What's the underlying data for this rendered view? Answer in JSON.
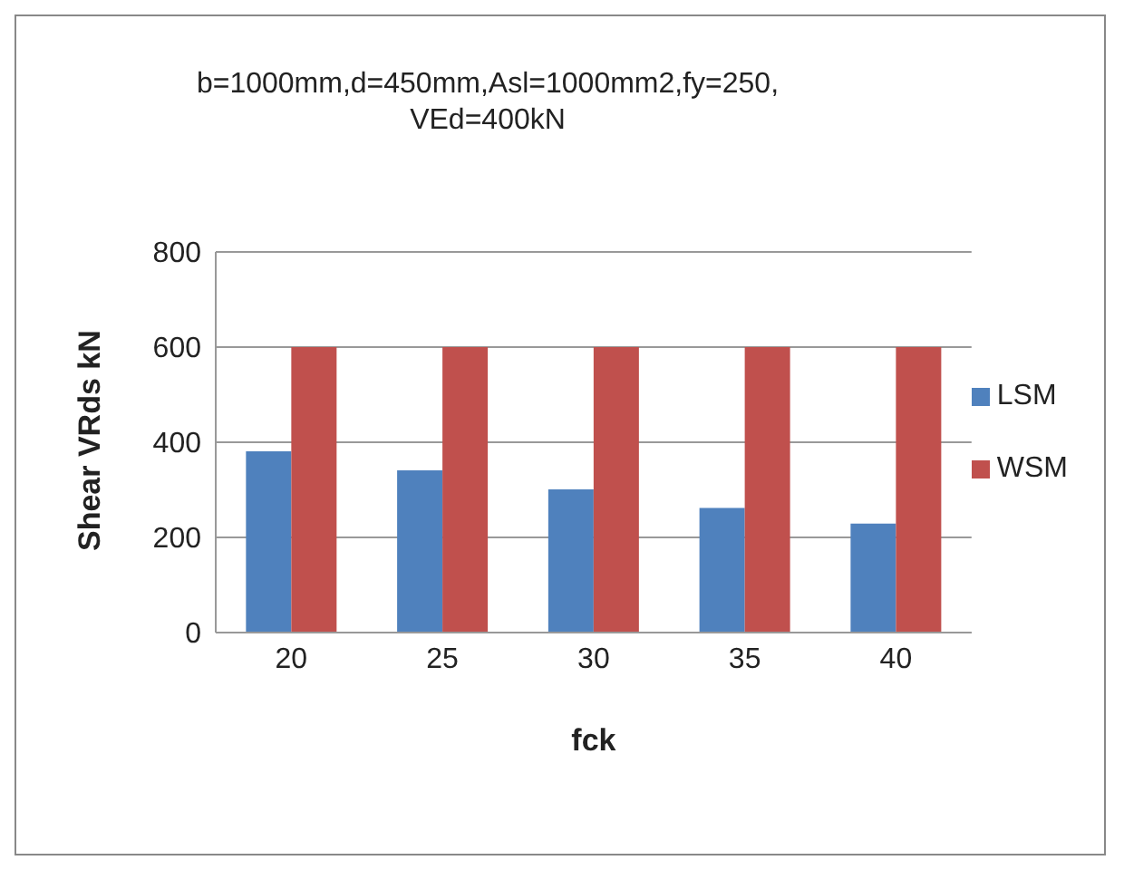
{
  "chart_data": {
    "type": "bar",
    "title": "b=1000mm,d=450mm,Asl=1000mm2,fy=250,\nVEd=400kN",
    "xlabel": "fck",
    "ylabel": "Shear VRds kN",
    "categories": [
      "20",
      "25",
      "30",
      "35",
      "40"
    ],
    "series": [
      {
        "name": "LSM",
        "color": "#4f81bd",
        "values": [
          381,
          341,
          301,
          262,
          229
        ]
      },
      {
        "name": "WSM",
        "color": "#c0504d",
        "values": [
          600,
          600,
          600,
          600,
          600
        ]
      }
    ],
    "ylim": [
      0,
      800
    ],
    "yticks": [
      0,
      200,
      400,
      600,
      800
    ],
    "grid": "y",
    "legend": "right"
  }
}
